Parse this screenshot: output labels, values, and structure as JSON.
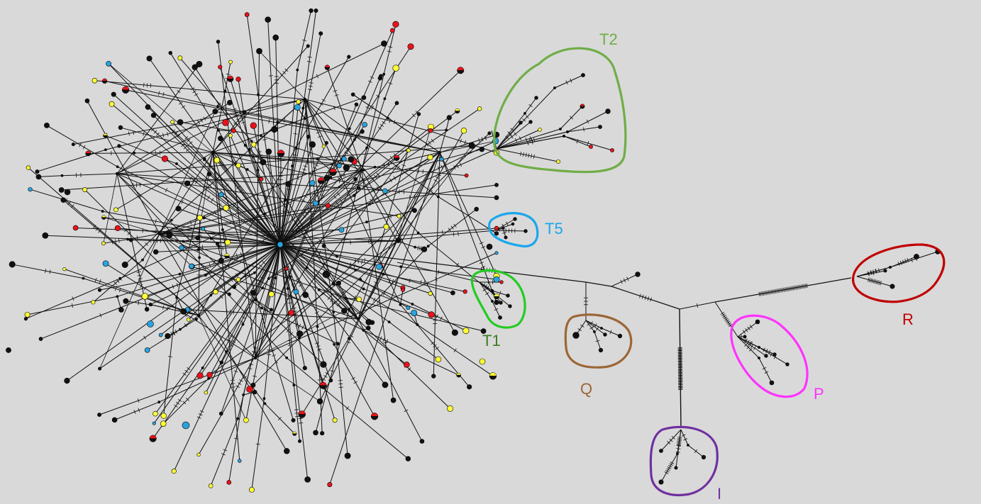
{
  "diagram": {
    "type": "median-joining haplotype network",
    "background": "#d9d9d9",
    "edge_color": "#111111",
    "node_colors": {
      "black": "#111111",
      "yellow": "#ffff33",
      "blue": "#29a3dd",
      "red": "#e8141b"
    },
    "clusters": [
      {
        "id": "T2",
        "label": "T2",
        "color": "#70ad47"
      },
      {
        "id": "T5",
        "label": "T5",
        "color": "#1aa7ec"
      },
      {
        "id": "T1",
        "label": "T1",
        "color": "#22cc22"
      },
      {
        "id": "Q",
        "label": "Q",
        "color": "#9c6636"
      },
      {
        "id": "P",
        "label": "P",
        "color": "#ff33ff"
      },
      {
        "id": "R",
        "label": "R",
        "color": "#c00000"
      },
      {
        "id": "I",
        "label": "I",
        "color": "#7030a0"
      }
    ]
  }
}
